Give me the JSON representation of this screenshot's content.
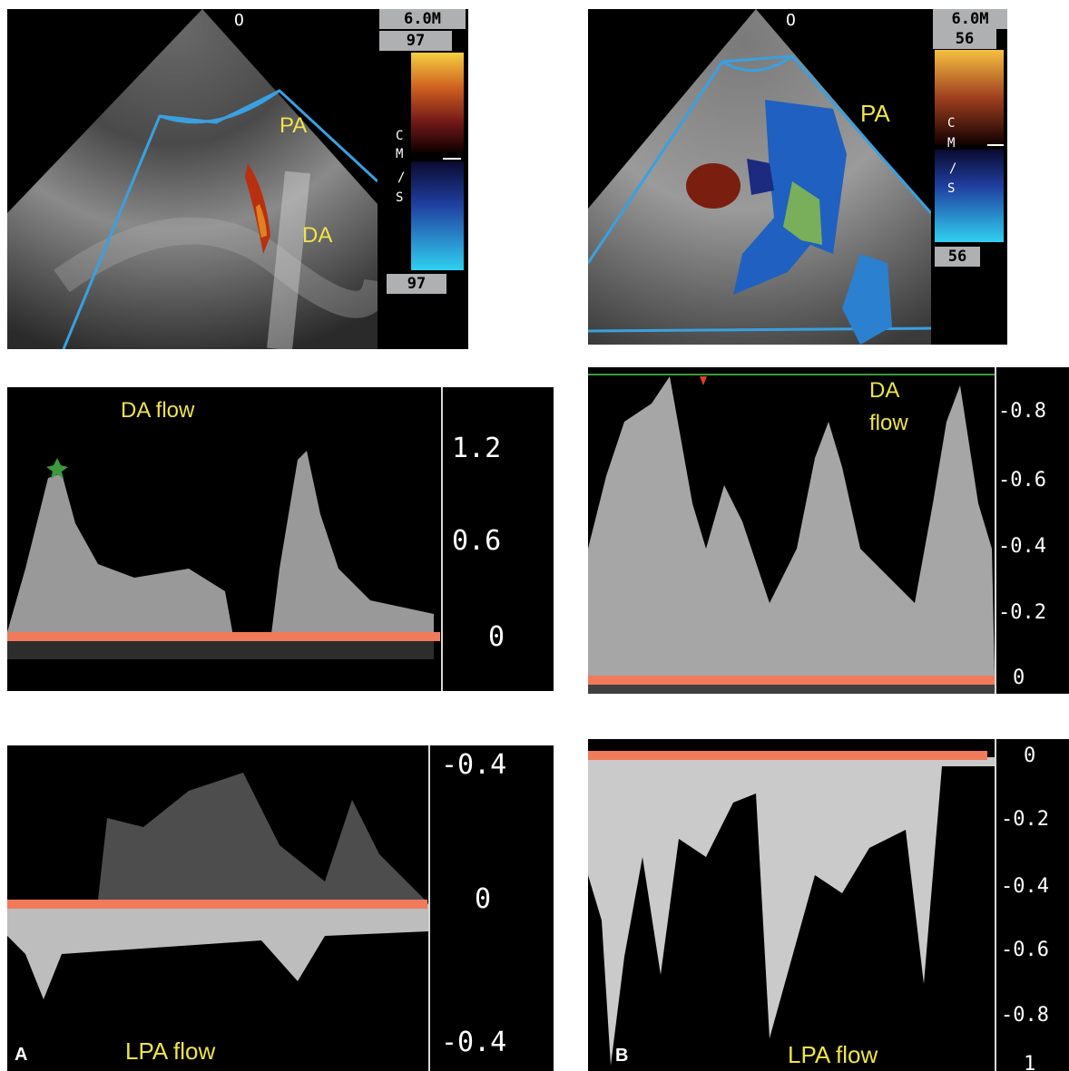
{
  "panelA": {
    "letter": "A",
    "echo": {
      "scale_top_label": "6.0M",
      "scale_hi": "97",
      "scale_lo": "97",
      "units_top": "C",
      "units_mid": "M",
      "units_slash": "/",
      "units_bottom": "S",
      "marker": "O",
      "label_pa": "PA",
      "label_da": "DA"
    },
    "da_flow": {
      "title": "DA flow",
      "ticks": [
        "1.2",
        "0.6",
        "0"
      ]
    },
    "lpa_flow": {
      "title": "LPA flow",
      "ticks": [
        "-0.4",
        "0",
        "-0.4"
      ]
    }
  },
  "panelB": {
    "letter": "B",
    "echo": {
      "scale_top_label": "6.0M",
      "scale_hi": "56",
      "scale_lo": "56",
      "units_top": "C",
      "units_mid": "M",
      "units_slash": "/",
      "units_bottom": "S",
      "marker": "O",
      "label_pa": "PA"
    },
    "da_flow": {
      "title_line1": "DA",
      "title_line2": "flow",
      "ticks": [
        "-0.8",
        "-0.6",
        "-0.4",
        "-0.2",
        "0"
      ]
    },
    "lpa_flow": {
      "title": "LPA flow",
      "ticks": [
        "0",
        "-0.2",
        "-0.4",
        "-0.6",
        "-0.8",
        "1"
      ]
    }
  },
  "colors": {
    "label_yellow": "#f0e44a",
    "baseline_red": "#f07a5a",
    "sector_blue": "#3aa0e0"
  }
}
